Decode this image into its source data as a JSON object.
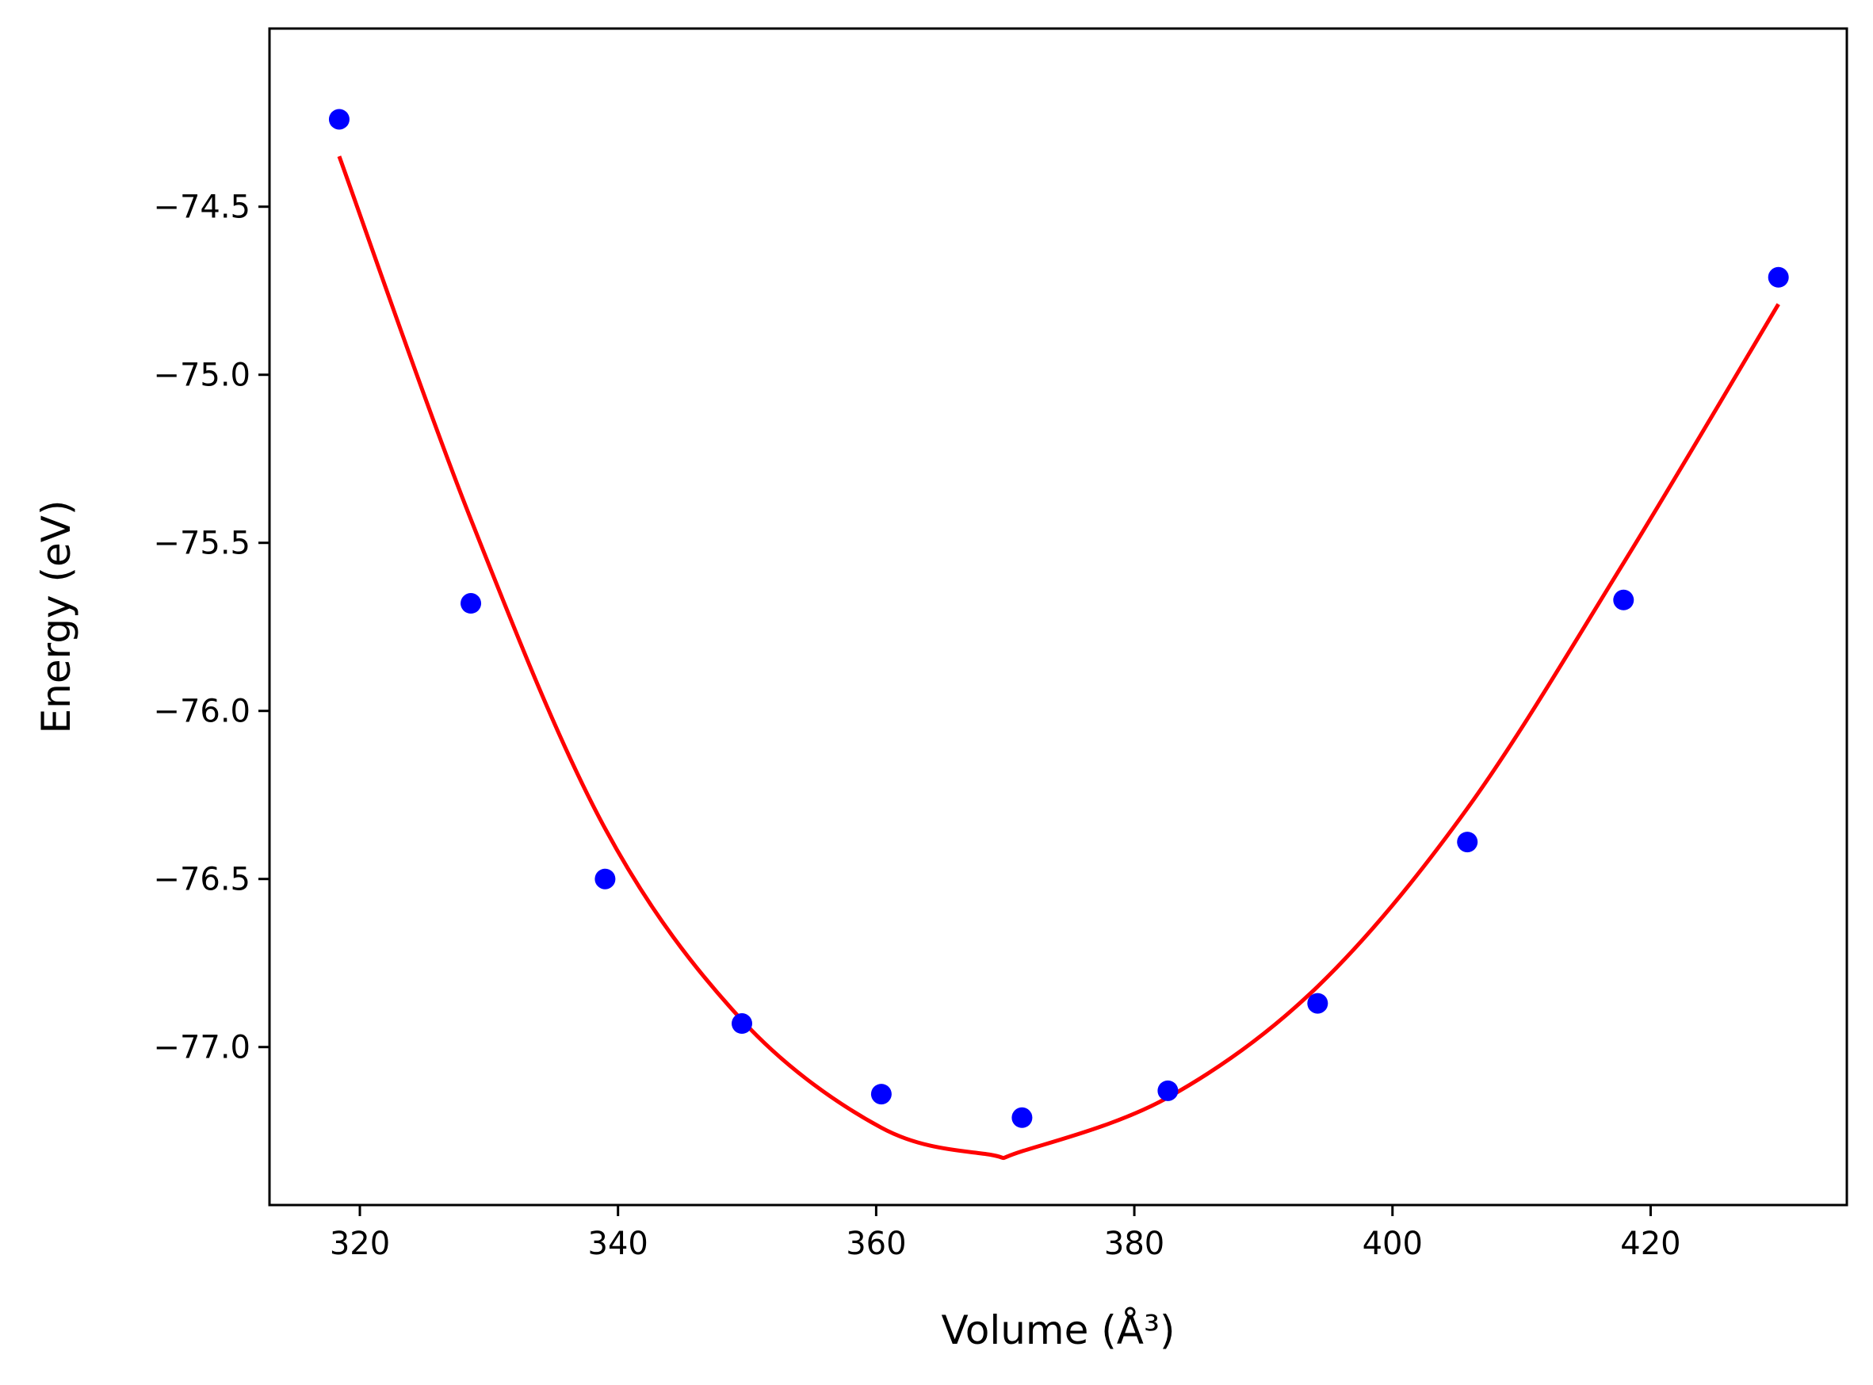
{
  "chart_data": {
    "type": "scatter",
    "title": "",
    "xlabel": "Volume (Å³)",
    "ylabel": "Energy (eV)",
    "xlim": [
      313,
      435.2
    ],
    "ylim": [
      -77.47,
      -73.97
    ],
    "xticks": [
      320,
      340,
      360,
      380,
      400,
      420
    ],
    "yticks": [
      -74.5,
      -75.0,
      -75.5,
      -76.0,
      -76.5,
      -77.0
    ],
    "xtick_labels": [
      "320",
      "340",
      "360",
      "380",
      "400",
      "420"
    ],
    "ytick_labels": [
      "−74.5",
      "−75.0",
      "−75.5",
      "−76.0",
      "−76.5",
      "−77.0"
    ],
    "grid": false,
    "legend": "none",
    "series": [
      {
        "kind": "scatter",
        "color": "#0000ff",
        "x": [
          318.4,
          328.6,
          339.0,
          349.6,
          360.4,
          371.3,
          382.6,
          394.2,
          405.8,
          417.9,
          429.9
        ],
        "y": [
          -74.24,
          -75.68,
          -76.5,
          -76.93,
          -77.14,
          -77.21,
          -77.13,
          -76.87,
          -76.39,
          -75.67,
          -74.71
        ]
      },
      {
        "kind": "line",
        "color": "#ff0000",
        "x": [
          318.4,
          328.6,
          339.0,
          349.6,
          360.4,
          368.8,
          371.3,
          382.6,
          394.2,
          405.8,
          417.9,
          429.9
        ],
        "y": [
          -74.35,
          -75.43,
          -76.35,
          -76.92,
          -77.24,
          -77.32,
          -77.31,
          -77.15,
          -76.82,
          -76.29,
          -75.56,
          -74.79
        ]
      }
    ]
  }
}
